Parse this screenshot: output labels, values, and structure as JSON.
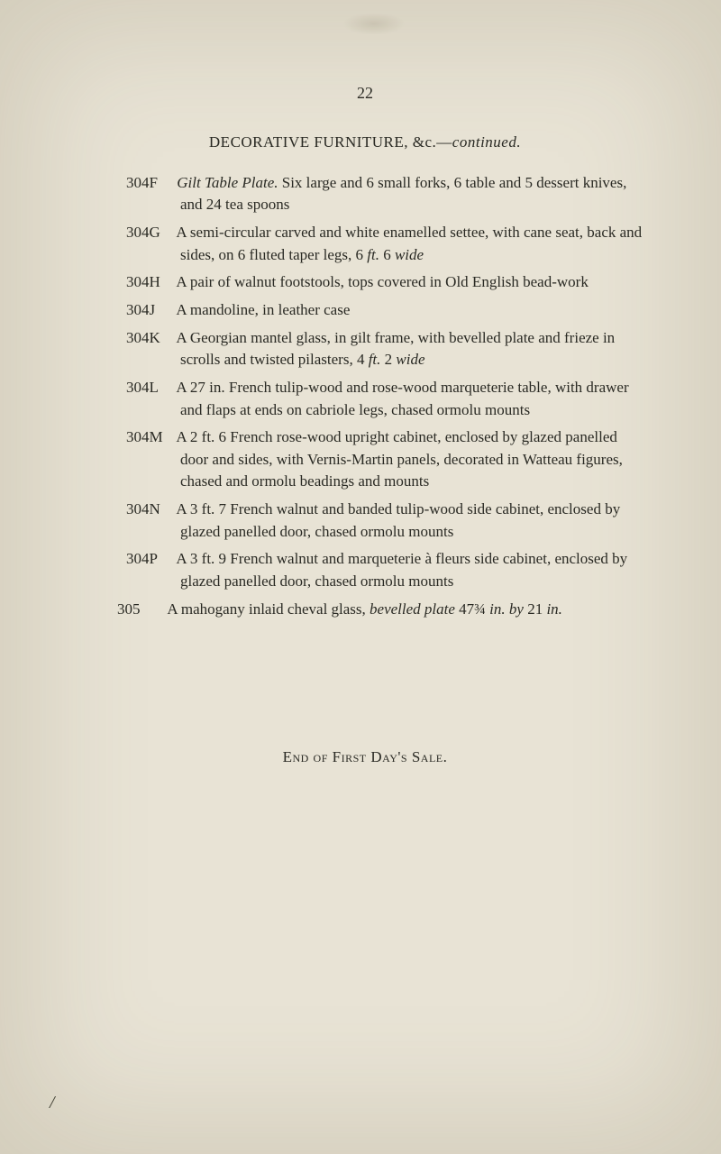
{
  "page_number": "22",
  "heading_prefix": "DECORATIVE FURNITURE, &c.—",
  "heading_suffix": "continued.",
  "entries": [
    {
      "label": "304F",
      "body_parts": [
        {
          "t": "Gilt Table Plate.",
          "i": true
        },
        {
          "t": " Six large and 6 small forks, 6 table and 5 dessert knives, and 24 tea spoons"
        }
      ]
    },
    {
      "label": "304G",
      "body_parts": [
        {
          "t": "A semi-circular carved and white enamelled settee, with cane seat, back and sides, on 6 fluted taper legs, 6 "
        },
        {
          "t": "ft.",
          "i": true
        },
        {
          "t": " 6 "
        },
        {
          "t": "wide",
          "i": true
        }
      ]
    },
    {
      "label": "304H",
      "body_parts": [
        {
          "t": "A pair of walnut footstools, tops covered in Old English bead-work"
        }
      ]
    },
    {
      "label": "304J",
      "body_parts": [
        {
          "t": "A mandoline, in leather case"
        }
      ]
    },
    {
      "label": "304K",
      "body_parts": [
        {
          "t": "A Georgian mantel glass, in gilt frame, with bevelled plate and frieze in scrolls and twisted pilasters, 4 "
        },
        {
          "t": "ft.",
          "i": true
        },
        {
          "t": " 2 "
        },
        {
          "t": "wide",
          "i": true
        }
      ]
    },
    {
      "label": "304L",
      "body_parts": [
        {
          "t": "A 27 in. French tulip-wood and rose-wood marqueterie table, with drawer and flaps at ends on cabriole legs, chased ormolu mounts"
        }
      ]
    },
    {
      "label": "304M",
      "body_parts": [
        {
          "t": "A 2 ft. 6 French rose-wood upright cabinet, enclosed by glazed panelled door and sides, with Vernis-Martin panels, decorated in Watteau figures, chased and ormolu beadings and mounts"
        }
      ]
    },
    {
      "label": "304N",
      "body_parts": [
        {
          "t": "A 3 ft. 7 French walnut and banded tulip-wood side cabinet, enclosed by glazed panelled door, chased ormolu mounts"
        }
      ]
    },
    {
      "label": "304P",
      "body_parts": [
        {
          "t": "A 3 ft. 9 French walnut and marqueterie à fleurs side cabinet, enclosed by glazed panelled door, chased ormolu mounts"
        }
      ]
    },
    {
      "label": "305",
      "body_parts": [
        {
          "t": "A mahogany inlaid cheval glass, "
        },
        {
          "t": "bevelled plate",
          "i": true
        },
        {
          "t": " 47¾ "
        },
        {
          "t": "in. by",
          "i": true
        },
        {
          "t": " 21 "
        },
        {
          "t": "in.",
          "i": true
        }
      ],
      "extra_class": "entry-305"
    }
  ],
  "end_text": "End of First Day's Sale.",
  "slash": "/"
}
